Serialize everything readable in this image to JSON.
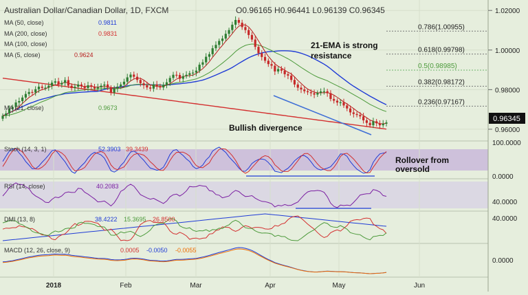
{
  "header": {
    "title": "Australian Dollar/Canadian Dollar, 1D, FXCM",
    "ohlc": "O0.96165 H0.96441 L0.96139 C0.96345"
  },
  "indicators": {
    "ma50": {
      "label": "MA (50, close)",
      "value": "0.9811"
    },
    "ma200": {
      "label": "MA (200, close)",
      "value": "0.9831"
    },
    "ma100": {
      "label": "MA (100, close)",
      "value": ""
    },
    "ma5": {
      "label": "MA (5, close)",
      "value": "0.9624"
    },
    "ma21": {
      "label": "MA (21, close)",
      "value": "0.9673"
    }
  },
  "panes": {
    "stoch": {
      "label": "Stoch (14, 3, 1)",
      "k": "52.3903",
      "d": "39.3439",
      "ticks": [
        "100.0000",
        "0.0000"
      ]
    },
    "rsi": {
      "label": "RSI (14, close)",
      "value": "40.2083",
      "ticks": [
        "40.0000"
      ]
    },
    "dmi": {
      "label": "DMI (13, 8)",
      "v1": "38.4222",
      "v2": "15.3695",
      "v3": "26.8500",
      "ticks": [
        "40.0000"
      ]
    },
    "macd": {
      "label": "MACD (12, 26, close, 9)",
      "v1": "0.0005",
      "v2": "-0.0050",
      "v3": "-0.0055",
      "ticks": [
        "0.0000"
      ]
    }
  },
  "annotations": {
    "ema": "21-EMA is strong resistance",
    "divergence": "Bullish divergence",
    "rollover": "Rollover from oversold"
  },
  "colors": {
    "background": "#e6eedd",
    "up_candle": "#2e7d32",
    "down_candle": "#c62828",
    "ma50": "#1f3bd6",
    "ma200": "#d32f2f",
    "ma21": "#4c9a3b",
    "ma5": "#b71c1c",
    "stoch_band": "#c9b8da",
    "rsi_band": "#d8d3e4",
    "divergence_line": "#3f6fd6",
    "last_price": "#111111"
  },
  "chart_data": {
    "type": "candlestick",
    "symbol": "AUDCAD",
    "timeframe": "1D",
    "x_ticks": [
      "2018",
      "Feb",
      "Mar",
      "Apr",
      "May",
      "Jun"
    ],
    "y_ticks": [
      "1.02000",
      "1.00000",
      "0.98000",
      "0.96000"
    ],
    "ylim": [
      0.9565,
      1.0225
    ],
    "last_price": "0.96345",
    "fib_levels": [
      {
        "label": "0.786(1.00955)",
        "value": 1.00955
      },
      {
        "label": "0.618(0.99798)",
        "value": 0.99798
      },
      {
        "label": "0.5(0.98985)",
        "value": 0.98985
      },
      {
        "label": "0.382(0.98172)",
        "value": 0.98172
      },
      {
        "label": "0.236(0.97167)",
        "value": 0.97167
      }
    ],
    "closes": [
      0.9668,
      0.968,
      0.9702,
      0.9712,
      0.9735,
      0.9742,
      0.976,
      0.9778,
      0.9788,
      0.9785,
      0.9802,
      0.9815,
      0.9809,
      0.981,
      0.982,
      0.9835,
      0.9842,
      0.9826,
      0.9834,
      0.9848,
      0.982,
      0.9808,
      0.9815,
      0.9826,
      0.9818,
      0.9808,
      0.9822,
      0.9814,
      0.9806,
      0.9812,
      0.982,
      0.9826,
      0.981,
      0.9785,
      0.9805,
      0.9815,
      0.9826,
      0.984,
      0.9862,
      0.9876,
      0.9865,
      0.9849,
      0.9832,
      0.9822,
      0.9811,
      0.9805,
      0.9826,
      0.9818,
      0.9811,
      0.9823,
      0.9837,
      0.9859,
      0.9875,
      0.9874,
      0.9855,
      0.9868,
      0.9875,
      0.9883,
      0.9886,
      0.9896,
      0.9926,
      0.9938,
      0.9966,
      0.9979,
      1.0009,
      1.0026,
      1.0046,
      1.0058,
      1.0082,
      1.0101,
      1.0128,
      1.0152,
      1.0138,
      1.0116,
      1.0101,
      1.0076,
      1.0053,
      1.0016,
      0.9984,
      0.9965,
      0.9946,
      0.9929,
      0.9921,
      0.9892,
      0.9904,
      0.9896,
      0.9878,
      0.9871,
      0.9849,
      0.9826,
      0.981,
      0.9801,
      0.9792,
      0.9787,
      0.9782,
      0.9775,
      0.9784,
      0.9791,
      0.9792,
      0.9782,
      0.9753,
      0.9744,
      0.9735,
      0.9736,
      0.972,
      0.9705,
      0.9685,
      0.9677,
      0.9672,
      0.9665,
      0.9645,
      0.9632,
      0.962,
      0.964,
      0.963,
      0.962,
      0.9628,
      0.9634
    ]
  }
}
